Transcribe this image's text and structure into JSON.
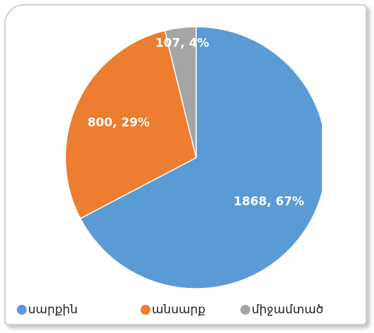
{
  "chart_data": {
    "type": "pie",
    "categories": [
      "սարքին",
      "անսարք",
      "միջամտած"
    ],
    "values": [
      1868,
      800,
      107
    ],
    "value_labels": [
      "1868, 67%",
      "800, 29%",
      "107, 4%"
    ],
    "colors": [
      "#5b9bd5",
      "#ed7d31",
      "#a5a5a5"
    ],
    "legend": "bottom"
  }
}
